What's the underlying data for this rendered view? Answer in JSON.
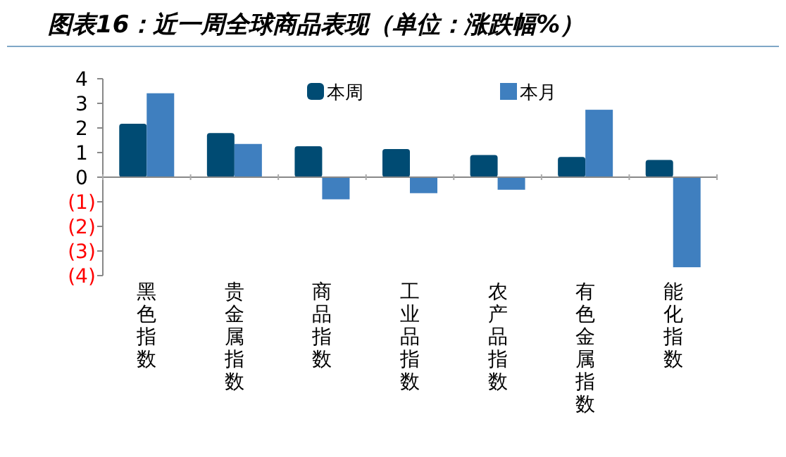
{
  "chart_data": {
    "type": "bar",
    "title": "图表16：近一周全球商品表现（单位：涨跌幅%）",
    "categories": [
      "黑色指数",
      "贵金属指数",
      "商品指数",
      "工业品指数",
      "农产品指数",
      "有色金属指数",
      "能化指数"
    ],
    "series": [
      {
        "name": "本周",
        "color": "#004b73",
        "values": [
          2.17,
          1.79,
          1.26,
          1.14,
          0.9,
          0.82,
          0.7
        ]
      },
      {
        "name": "本月",
        "color": "#3f7fbf",
        "values": [
          3.41,
          1.35,
          -0.9,
          -0.65,
          -0.51,
          2.74,
          -3.66
        ]
      }
    ],
    "ylim": [
      -4,
      4
    ],
    "yticks": [
      {
        "value": -4,
        "label": "(4)"
      },
      {
        "value": -3,
        "label": "(3)"
      },
      {
        "value": -2,
        "label": "(2)"
      },
      {
        "value": -1,
        "label": "(1)"
      },
      0,
      1,
      2,
      3,
      4
    ],
    "legend": "top"
  }
}
